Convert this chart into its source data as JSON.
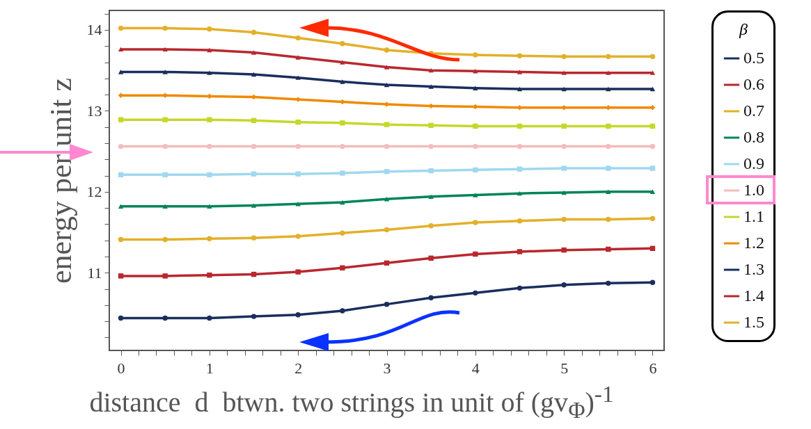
{
  "chart_data": {
    "type": "line",
    "xlabel": "distance  d  btwn. two strings in unit of (gv$_{Φ}$)$^{-1}$",
    "ylabel": "energy per unit z",
    "legend_title": "β",
    "legend": "right",
    "grid": false,
    "x": [
      0,
      0.5,
      1,
      1.5,
      2,
      2.5,
      3,
      3.5,
      4,
      4.5,
      5,
      5.5,
      6
    ],
    "xlim": [
      -0.13,
      6.13
    ],
    "ylim": [
      10.04,
      14.24
    ],
    "xticks": [
      0,
      {
        "value": 0.2,
        "label": null
      },
      {
        "value": 0.4,
        "label": null
      },
      {
        "value": 0.6,
        "label": null
      },
      {
        "value": 0.8,
        "label": null
      },
      1,
      {
        "value": 1.2,
        "label": null
      },
      {
        "value": 1.4,
        "label": null
      },
      {
        "value": 1.6,
        "label": null
      },
      {
        "value": 1.8,
        "label": null
      },
      2,
      {
        "value": 2.2,
        "label": null
      },
      {
        "value": 2.4,
        "label": null
      },
      {
        "value": 2.6,
        "label": null
      },
      {
        "value": 2.8,
        "label": null
      },
      3,
      {
        "value": 3.2,
        "label": null
      },
      {
        "value": 3.4,
        "label": null
      },
      {
        "value": 3.6,
        "label": null
      },
      {
        "value": 3.8,
        "label": null
      },
      4,
      {
        "value": 4.2,
        "label": null
      },
      {
        "value": 4.4,
        "label": null
      },
      {
        "value": 4.6,
        "label": null
      },
      {
        "value": 4.8,
        "label": null
      },
      5,
      {
        "value": 5.2,
        "label": null
      },
      {
        "value": 5.4,
        "label": null
      },
      {
        "value": 5.6,
        "label": null
      },
      {
        "value": 5.8,
        "label": null
      },
      6
    ],
    "yticks": [
      {
        "value": 10.2,
        "label": null
      },
      {
        "value": 10.4,
        "label": null
      },
      {
        "value": 10.6,
        "label": null
      },
      {
        "value": 10.8,
        "label": null
      },
      11,
      {
        "value": 11.2,
        "label": null
      },
      {
        "value": 11.4,
        "label": null
      },
      {
        "value": 11.6,
        "label": null
      },
      {
        "value": 11.8,
        "label": null
      },
      12,
      {
        "value": 12.2,
        "label": null
      },
      {
        "value": 12.4,
        "label": null
      },
      {
        "value": 12.6,
        "label": null
      },
      {
        "value": 12.8,
        "label": null
      },
      13,
      {
        "value": 13.2,
        "label": null
      },
      {
        "value": 13.4,
        "label": null
      },
      {
        "value": 13.6,
        "label": null
      },
      {
        "value": 13.8,
        "label": null
      },
      14,
      {
        "value": 14.2,
        "label": null
      }
    ],
    "series": [
      {
        "name": "0.5",
        "color": "#1a2e5e",
        "marker": "circle",
        "values": [
          10.44,
          10.44,
          10.44,
          10.46,
          10.48,
          10.53,
          10.61,
          10.69,
          10.75,
          10.81,
          10.85,
          10.87,
          10.88
        ]
      },
      {
        "name": "0.6",
        "color": "#b8282e",
        "marker": "square",
        "values": [
          10.96,
          10.96,
          10.97,
          10.98,
          11.01,
          11.06,
          11.12,
          11.18,
          11.23,
          11.26,
          11.28,
          11.29,
          11.3
        ]
      },
      {
        "name": "0.7",
        "color": "#e3b02a",
        "marker": "circle",
        "values": [
          11.41,
          11.41,
          11.42,
          11.43,
          11.45,
          11.49,
          11.53,
          11.58,
          11.62,
          11.64,
          11.66,
          11.66,
          11.67
        ]
      },
      {
        "name": "0.8",
        "color": "#00845a",
        "marker": "triangle",
        "values": [
          11.82,
          11.82,
          11.82,
          11.83,
          11.85,
          11.87,
          11.91,
          11.94,
          11.96,
          11.98,
          11.99,
          12.0,
          12.0
        ]
      },
      {
        "name": "0.9",
        "color": "#a0d8ef",
        "marker": "square",
        "values": [
          12.21,
          12.21,
          12.21,
          12.22,
          12.22,
          12.23,
          12.25,
          12.26,
          12.27,
          12.28,
          12.29,
          12.29,
          12.29
        ]
      },
      {
        "name": "1.0",
        "color": "#f5bcbc",
        "marker": "circle",
        "values": [
          12.56,
          12.56,
          12.56,
          12.56,
          12.56,
          12.56,
          12.56,
          12.56,
          12.56,
          12.56,
          12.56,
          12.56,
          12.56
        ]
      },
      {
        "name": "1.1",
        "color": "#c4d82a",
        "marker": "square",
        "values": [
          12.89,
          12.89,
          12.89,
          12.88,
          12.86,
          12.85,
          12.83,
          12.82,
          12.81,
          12.81,
          12.81,
          12.81,
          12.81
        ]
      },
      {
        "name": "1.2",
        "color": "#f08a00",
        "marker": "diamond",
        "values": [
          13.19,
          13.19,
          13.18,
          13.17,
          13.14,
          13.11,
          13.08,
          13.06,
          13.05,
          13.04,
          13.04,
          13.04,
          13.04
        ]
      },
      {
        "name": "1.3",
        "color": "#1a2e5e",
        "marker": "triangle",
        "values": [
          13.48,
          13.48,
          13.47,
          13.45,
          13.41,
          13.36,
          13.32,
          13.3,
          13.28,
          13.27,
          13.27,
          13.27,
          13.27
        ]
      },
      {
        "name": "1.4",
        "color": "#b8282e",
        "marker": "triangle",
        "values": [
          13.76,
          13.76,
          13.75,
          13.72,
          13.66,
          13.6,
          13.54,
          13.5,
          13.49,
          13.48,
          13.47,
          13.47,
          13.47
        ]
      },
      {
        "name": "1.5",
        "color": "#e3b02a",
        "marker": "circle",
        "values": [
          14.02,
          14.02,
          14.01,
          13.97,
          13.9,
          13.83,
          13.75,
          13.71,
          13.69,
          13.68,
          13.67,
          13.67,
          13.67
        ]
      }
    ]
  }
}
